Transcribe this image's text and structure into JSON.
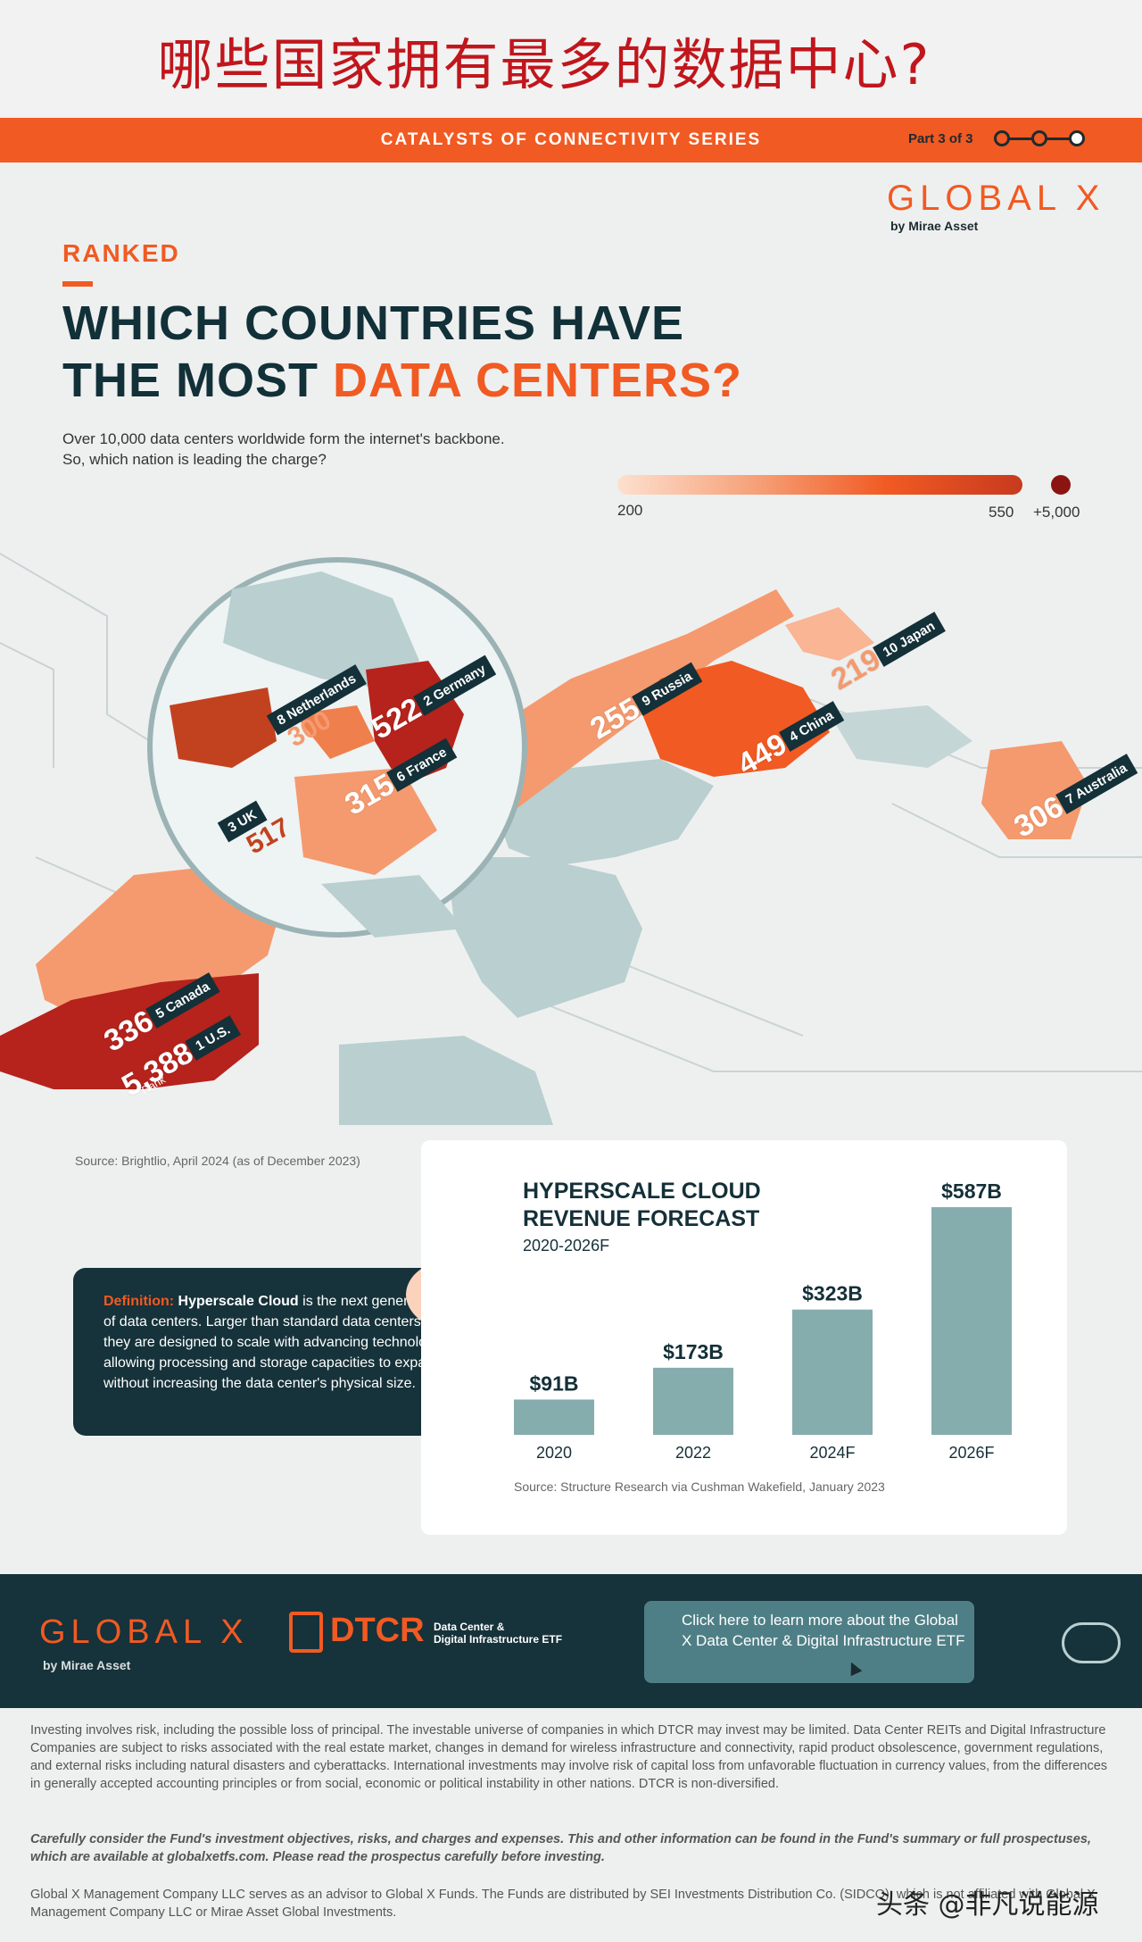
{
  "top_title": "哪些国家拥有最多的数据中心?",
  "series": {
    "label": "CATALYSTS OF CONNECTIVITY SERIES",
    "part": "Part 3 of 3"
  },
  "brand": {
    "name": "GLOBAL X",
    "sub": "by Mirae Asset"
  },
  "header": {
    "eyebrow": "RANKED",
    "line1": "WHICH COUNTRIES HAVE",
    "line2_a": "THE MOST ",
    "line2_b": "DATA CENTERS?",
    "intro": "Over 10,000 data centers worldwide form the internet's backbone. So, which nation is leading the charge?"
  },
  "legend": {
    "min": "200",
    "mid": "550",
    "max": "+5,000",
    "colors": [
      "#fbd3bd",
      "#f15a22",
      "#b5231c",
      "#8c1410"
    ]
  },
  "countries": [
    {
      "rank": "1",
      "name": "U.S.",
      "value": "5,388"
    },
    {
      "rank": "2",
      "name": "Germany",
      "value": "522"
    },
    {
      "rank": "3",
      "name": "UK",
      "value": "517"
    },
    {
      "rank": "4",
      "name": "China",
      "value": "449"
    },
    {
      "rank": "5",
      "name": "Canada",
      "value": "336"
    },
    {
      "rank": "6",
      "name": "France",
      "value": "315"
    },
    {
      "rank": "7",
      "name": "Australia",
      "value": "306"
    },
    {
      "rank": "8",
      "name": "Netherlands",
      "value": "300"
    },
    {
      "rank": "9",
      "name": "Russia",
      "value": "255"
    },
    {
      "rank": "10",
      "name": "Japan",
      "value": "219"
    }
  ],
  "rank_word": "Rank",
  "map_source": "Source: Brightlio, April 2024 (as of December 2023)",
  "definition": {
    "label": "Definition:",
    "term": "Hyperscale Cloud",
    "text": " is the next generation of data centers. Larger than standard data centers, they are designed to scale with advancing technology, allowing processing and storage capacities to expand without increasing the data center's physical size."
  },
  "chart_data": {
    "type": "bar",
    "title": "HYPERSCALE CLOUD REVENUE FORECAST",
    "subtitle": "2020-2026F",
    "categories": [
      "2020",
      "2022",
      "2024F",
      "2026F"
    ],
    "values": [
      91,
      173,
      323,
      587
    ],
    "value_labels": [
      "$91B",
      "$173B",
      "$323B",
      "$587B"
    ],
    "color": "#86adad",
    "source": "Source: Structure Research via Cushman Wakefield, January 2023"
  },
  "footer": {
    "brand": "GLOBAL X",
    "brand_sub": "by Mirae Asset",
    "etf_ticker": "DTCR",
    "etf_name_1": "Data Center &",
    "etf_name_2": "Digital Infrastructure ETF",
    "cta": "Click here to learn more about the Global X Data Center & Digital Infrastructure ETF"
  },
  "disclaimer": {
    "p1": "Investing involves risk, including the possible loss of principal. The investable universe of companies in which DTCR may invest may be limited. Data Center REITs and Digital Infrastructure Companies are subject to risks associated with the real estate market, changes in demand for wireless infrastructure and connectivity, rapid product obsolescence, government regulations, and external risks including natural disasters and cyberattacks. International investments may involve risk of capital loss from unfavorable fluctuation in currency values, from the differences in generally accepted accounting principles or from social, economic or political instability in other nations. DTCR is non-diversified.",
    "p2": "Carefully consider the Fund's investment objectives, risks, and charges and expenses. This and other information can be found in the Fund's summary or full prospectuses, which are available at globalxetfs.com. Please read the prospectus carefully before investing.",
    "p3": "Global X Management Company LLC serves as an advisor to Global X Funds. The Funds are distributed by SEI Investments Distribution Co. (SIDCO), which is not affiliated with Global X Management Company LLC or Mirae Asset Global Investments."
  },
  "watermark": "头条 @非凡说能源"
}
